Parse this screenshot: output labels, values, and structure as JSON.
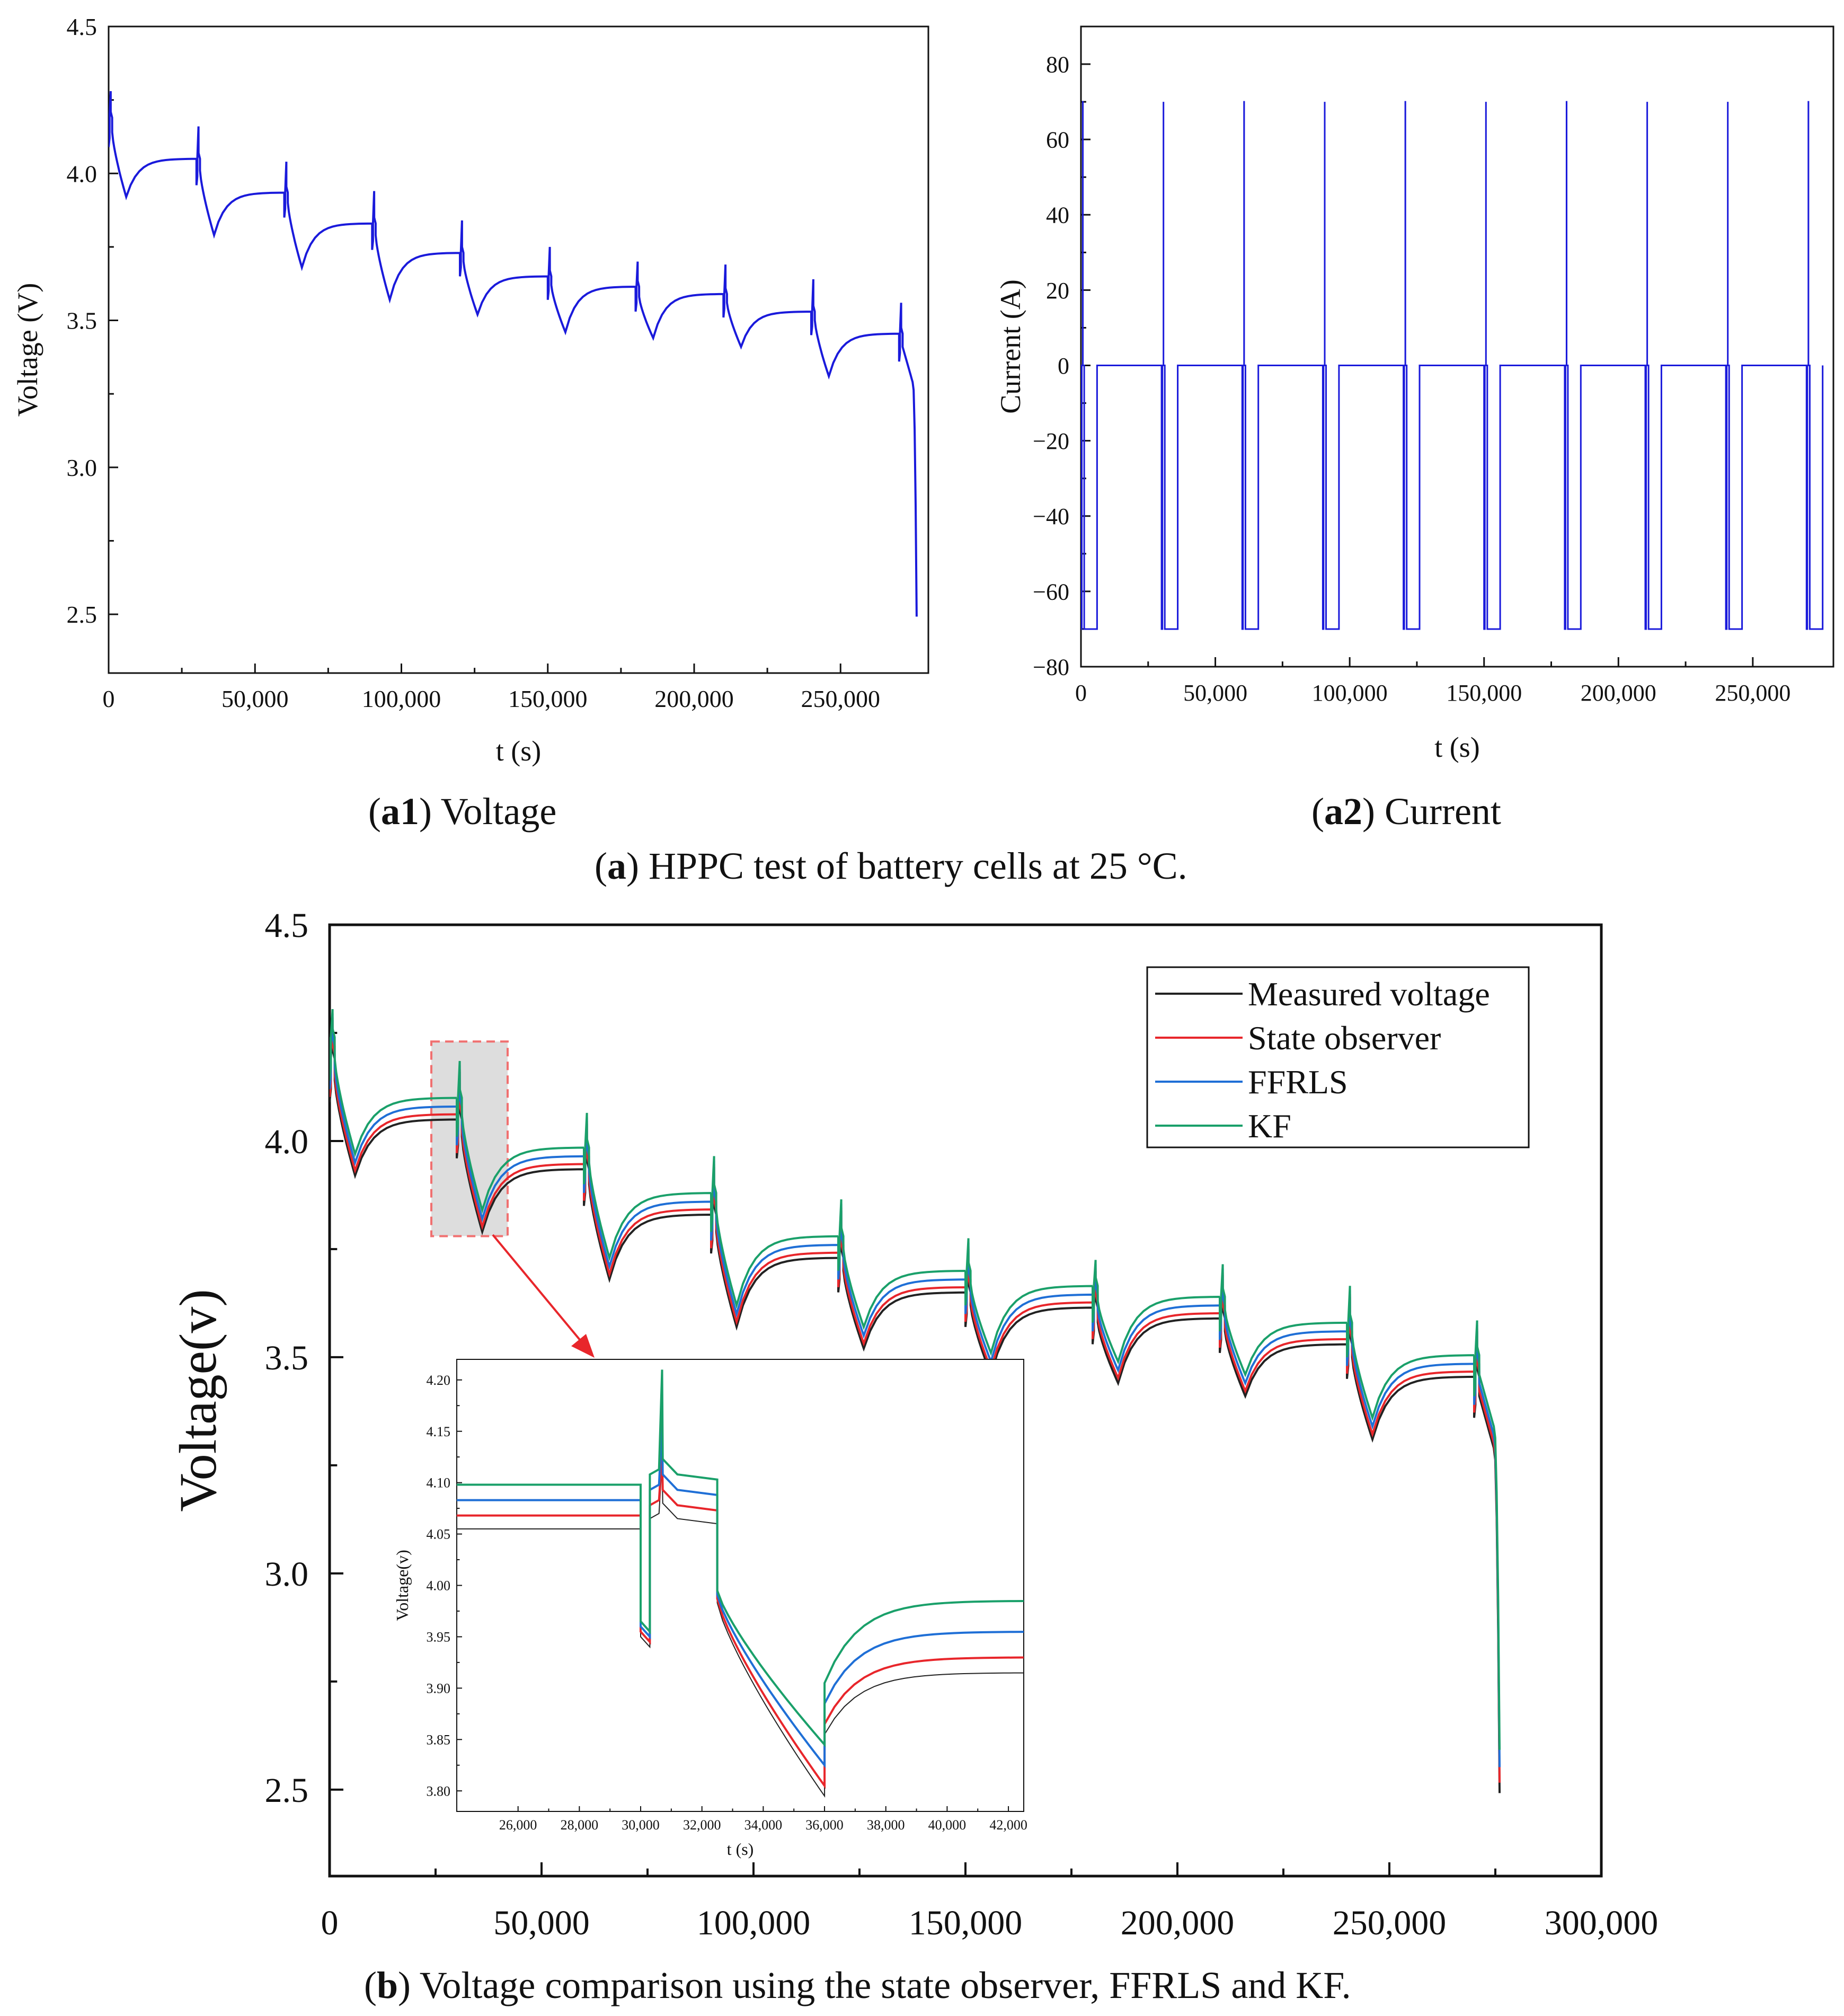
{
  "captions": {
    "a1": {
      "tag": "a1",
      "open": "(",
      "close": ")",
      "text": " Voltage"
    },
    "a2": {
      "tag": "a2",
      "open": "(",
      "close": ")",
      "text": " Current"
    },
    "a": {
      "tag": "a",
      "open": "(",
      "close": ")",
      "text": " HPPC test of battery cells at 25 °C."
    },
    "b": {
      "tag": "b",
      "open": "(",
      "close": ")",
      "text": " Voltage comparison using the state observer, FFRLS and KF."
    }
  },
  "chart_data": [
    {
      "id": "a1",
      "type": "line",
      "xlabel": "t (s)",
      "ylabel": "Voltage (V)",
      "xlim": [
        0,
        280000
      ],
      "ylim": [
        2.3,
        4.5
      ],
      "xticks": [
        0,
        50000,
        100000,
        150000,
        200000,
        250000
      ],
      "xtick_labels": [
        "0",
        "50,000",
        "100,000",
        "150,000",
        "200,000",
        "250,000"
      ],
      "yticks": [
        2.5,
        3.0,
        3.5,
        4.0,
        4.5
      ],
      "ytick_labels": [
        "2.5",
        "3.0",
        "3.5",
        "4.0",
        "4.5"
      ],
      "grid": false,
      "color": "#1a1adb",
      "series": [
        {
          "pulse_starts": [
            0,
            30000,
            60000,
            90000,
            120000,
            150000,
            180000,
            210000,
            240000,
            270000
          ],
          "rest_voltage_before_pulse": [
            4.19,
            4.05,
            3.935,
            3.83,
            3.73,
            3.65,
            3.615,
            3.59,
            3.53,
            3.455
          ],
          "charge_spike": [
            4.28,
            4.16,
            4.04,
            3.94,
            3.84,
            3.75,
            3.7,
            3.69,
            3.64,
            3.56
          ],
          "discharge_dip": [
            4.12,
            3.99,
            3.88,
            3.77,
            3.68,
            3.6,
            3.56,
            3.54,
            3.48,
            3.39
          ],
          "discharge_end": [
            3.92,
            3.79,
            3.68,
            3.57,
            3.52,
            3.46,
            3.44,
            3.41,
            3.31,
            2.45
          ],
          "end_time": 276000
        }
      ]
    },
    {
      "id": "a2",
      "type": "line",
      "xlabel": "t (s)",
      "ylabel": "Current (A)",
      "xlim": [
        0,
        280000
      ],
      "ylim": [
        -80,
        90
      ],
      "xticks": [
        0,
        50000,
        100000,
        150000,
        200000,
        250000
      ],
      "xtick_labels": [
        "0",
        "50,000",
        "100,000",
        "150,000",
        "200,000",
        "250,000"
      ],
      "yticks": [
        -80,
        -60,
        -40,
        -20,
        0,
        20,
        40,
        60,
        80
      ],
      "ytick_labels": [
        "−80",
        "−60",
        "−40",
        "−20",
        "0",
        "20",
        "40",
        "60",
        "80"
      ],
      "grid": false,
      "color": "#1a1adb",
      "series": [
        {
          "pulse_starts": [
            0,
            30000,
            60000,
            90000,
            120000,
            150000,
            180000,
            210000,
            240000,
            270000
          ],
          "charge_current": 70,
          "discharge_current": -70,
          "rest_current": 0,
          "end_time": 276000
        }
      ]
    },
    {
      "id": "b",
      "type": "line",
      "xlabel": "",
      "ylabel": "Voltage(v)",
      "xlim": [
        0,
        300000
      ],
      "ylim": [
        2.3,
        4.5
      ],
      "xticks": [
        0,
        50000,
        100000,
        150000,
        200000,
        250000,
        300000
      ],
      "xtick_labels": [
        "0",
        "50,000",
        "100,000",
        "150,000",
        "200,000",
        "250,000",
        "300,000"
      ],
      "yticks": [
        2.5,
        3.0,
        3.5,
        4.0,
        4.5
      ],
      "ytick_labels": [
        "2.5",
        "3.0",
        "3.5",
        "4.0",
        "4.5"
      ],
      "grid": false,
      "legend_position": "top-right",
      "series": [
        {
          "name": "Measured voltage",
          "color": "#222222",
          "offset_v": 0.0
        },
        {
          "name": "State observer",
          "color": "#e8262b",
          "offset_v": 0.012
        },
        {
          "name": "FFRLS",
          "color": "#1f6fd6",
          "offset_v": 0.03
        },
        {
          "name": "KF",
          "color": "#1aa06a",
          "offset_v": 0.05
        }
      ],
      "highlight_x": [
        24000,
        42000
      ]
    },
    {
      "id": "b-inset",
      "type": "line",
      "xlabel": "t (s)",
      "ylabel": "Voltage(v)",
      "xlim": [
        24000,
        42500
      ],
      "ylim": [
        3.78,
        4.22
      ],
      "xticks": [
        26000,
        28000,
        30000,
        32000,
        34000,
        36000,
        38000,
        40000,
        42000
      ],
      "xtick_labels": [
        "26,000",
        "28,000",
        "30,000",
        "32,000",
        "34,000",
        "36,000",
        "38,000",
        "40,000",
        "42,000"
      ],
      "yticks": [
        3.8,
        3.85,
        3.9,
        3.95,
        4.0,
        4.05,
        4.1,
        4.15,
        4.2
      ],
      "ytick_labels": [
        "3.80",
        "3.85",
        "3.90",
        "3.95",
        "4.00",
        "4.05",
        "4.10",
        "4.15",
        "4.20"
      ],
      "grid": false,
      "series": [
        {
          "name": "Measured voltage",
          "color": "#222222",
          "rest_before": 4.055,
          "dip_bottom": 3.795,
          "rest_after": 3.915
        },
        {
          "name": "State observer",
          "color": "#e8262b",
          "rest_before": 4.068,
          "dip_bottom": 3.805,
          "rest_after": 3.93
        },
        {
          "name": "FFRLS",
          "color": "#1f6fd6",
          "rest_before": 4.083,
          "dip_bottom": 3.825,
          "rest_after": 3.955
        },
        {
          "name": "KF",
          "color": "#1aa06a",
          "rest_before": 4.098,
          "dip_bottom": 3.845,
          "rest_after": 3.985
        }
      ]
    }
  ]
}
